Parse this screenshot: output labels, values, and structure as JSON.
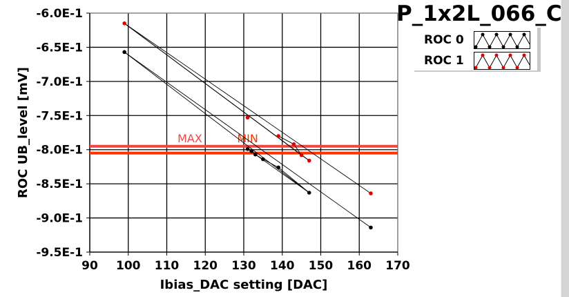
{
  "title": "P_1x2L_066_C",
  "legend": [
    {
      "label": "ROC 0",
      "color": "#000000"
    },
    {
      "label": "ROC 1",
      "color": "#e00000"
    }
  ],
  "chart_data": {
    "type": "line",
    "title": "P_1x2L_066_C",
    "xlabel": "Ibias_DAC setting [DAC]",
    "ylabel": "ROC UB_level [mV]",
    "xlim": [
      90,
      170
    ],
    "ylim": [
      -0.95,
      -0.6
    ],
    "xticks": [
      90,
      100,
      110,
      120,
      130,
      140,
      150,
      160,
      170
    ],
    "xtick_labels": [
      "90",
      "100",
      "110",
      "120",
      "130",
      "140",
      "150",
      "160",
      "170"
    ],
    "yticks": [
      -0.6,
      -0.65,
      -0.7,
      -0.75,
      -0.8,
      -0.85,
      -0.9,
      -0.95
    ],
    "ytick_labels": [
      "-6.0E-1",
      "-6.5E-1",
      "-7.0E-1",
      "-7.5E-1",
      "-8.0E-1",
      "-8.5E-1",
      "-9.0E-1",
      "-9.5E-1"
    ],
    "grid": true,
    "series": [
      {
        "name": "ROC 0",
        "color": "#000000",
        "x": [
          99,
          131,
          132,
          133,
          135,
          139,
          147,
          163
        ],
        "y": [
          -0.657,
          -0.799,
          -0.802,
          -0.807,
          -0.814,
          -0.826,
          -0.863,
          -0.914
        ],
        "segments": [
          [
            0,
            7
          ],
          [
            0,
            6
          ],
          [
            1,
            2
          ],
          [
            2,
            3
          ],
          [
            3,
            4
          ],
          [
            4,
            5
          ],
          [
            5,
            6
          ],
          [
            1,
            6
          ]
        ]
      },
      {
        "name": "ROC 1",
        "color": "#e00000",
        "x": [
          99,
          131,
          139,
          143,
          145,
          147,
          163
        ],
        "y": [
          -0.615,
          -0.753,
          -0.78,
          -0.792,
          -0.808,
          -0.816,
          -0.864
        ],
        "segments": [
          [
            0,
            6
          ],
          [
            0,
            5
          ],
          [
            0,
            4
          ],
          [
            2,
            3
          ],
          [
            3,
            4
          ],
          [
            4,
            5
          ]
        ]
      }
    ],
    "thresholds": [
      {
        "label": "MAX",
        "y": -0.795,
        "color": "#f04545",
        "label_x": 116
      },
      {
        "label": "MIN",
        "y": -0.805,
        "color": "#ff3300",
        "label_x": 131
      }
    ]
  }
}
